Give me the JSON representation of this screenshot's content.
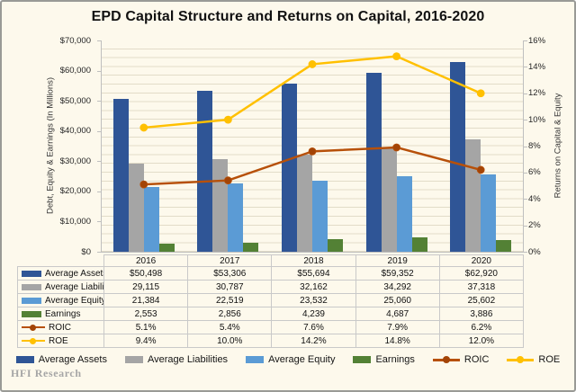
{
  "title": "EPD Capital Structure and Returns on Capital, 2016-2020",
  "watermark": "HFI Research",
  "colors": {
    "background": "#FDF9EC",
    "frame_border": "#999A96",
    "axis_line": "#BFBFBF",
    "table_border": "#C9C9C9",
    "average_assets": "#2F5596",
    "average_liabilities": "#A5A5A5",
    "average_equity": "#5B9BD5",
    "earnings": "#538135",
    "roic_line": "#B75009",
    "roic_marker": "#A34406",
    "roe_line": "#FFC000",
    "roe_marker": "#FFC000"
  },
  "chart_data": {
    "type": "bar",
    "subtype": "grouped bars with two overlay lines on secondary axis",
    "title": "EPD Capital Structure and Returns on Capital, 2016-2020",
    "categories": [
      "2016",
      "2017",
      "2018",
      "2019",
      "2020"
    ],
    "series": [
      {
        "name": "Average Assets",
        "type": "bar",
        "axis": "left",
        "color": "#2F5596",
        "values": [
          50498,
          53306,
          55694,
          59352,
          62920
        ],
        "display": [
          "$50,498",
          "$53,306",
          "$55,694",
          "$59,352",
          "$62,920"
        ]
      },
      {
        "name": "Average Liabilities",
        "type": "bar",
        "axis": "left",
        "color": "#A5A5A5",
        "values": [
          29115,
          30787,
          32162,
          34292,
          37318
        ],
        "display": [
          "29,115",
          "30,787",
          "32,162",
          "34,292",
          "37,318"
        ]
      },
      {
        "name": "Average Equity",
        "type": "bar",
        "axis": "left",
        "color": "#5B9BD5",
        "values": [
          21384,
          22519,
          23532,
          25060,
          25602
        ],
        "display": [
          "21,384",
          "22,519",
          "23,532",
          "25,060",
          "25,602"
        ]
      },
      {
        "name": "Earnings",
        "type": "bar",
        "axis": "left",
        "color": "#538135",
        "values": [
          2553,
          2856,
          4239,
          4687,
          3886
        ],
        "display": [
          "2,553",
          "2,856",
          "4,239",
          "4,687",
          "3,886"
        ]
      },
      {
        "name": "ROIC",
        "type": "line",
        "axis": "right",
        "color": "#B75009",
        "marker_color": "#A34406",
        "values": [
          5.1,
          5.4,
          7.6,
          7.9,
          6.2
        ],
        "display": [
          "5.1%",
          "5.4%",
          "7.6%",
          "7.9%",
          "6.2%"
        ]
      },
      {
        "name": "ROE",
        "type": "line",
        "axis": "right",
        "color": "#FFC000",
        "marker_color": "#FFC000",
        "values": [
          9.4,
          10.0,
          14.2,
          14.8,
          12.0
        ],
        "display": [
          "9.4%",
          "10.0%",
          "14.2%",
          "14.8%",
          "12.0%"
        ]
      }
    ],
    "left_axis": {
      "label": "Debt, Equity & Earnings (In Millions)",
      "min": 0,
      "max": 70000,
      "ticks": [
        "$70,000",
        "$60,000",
        "$50,000",
        "$40,000",
        "$30,000",
        "$20,000",
        "$10,000",
        "$0"
      ]
    },
    "right_axis": {
      "label": "Returns on Capital & Equity",
      "min": 0,
      "max": 16,
      "ticks": [
        "16%",
        "14%",
        "12%",
        "10%",
        "8%",
        "6%",
        "4%",
        "2%",
        "0%"
      ]
    },
    "grid": "subtle horizontal stripes",
    "legend_position": "bottom",
    "data_table_shown": true
  }
}
